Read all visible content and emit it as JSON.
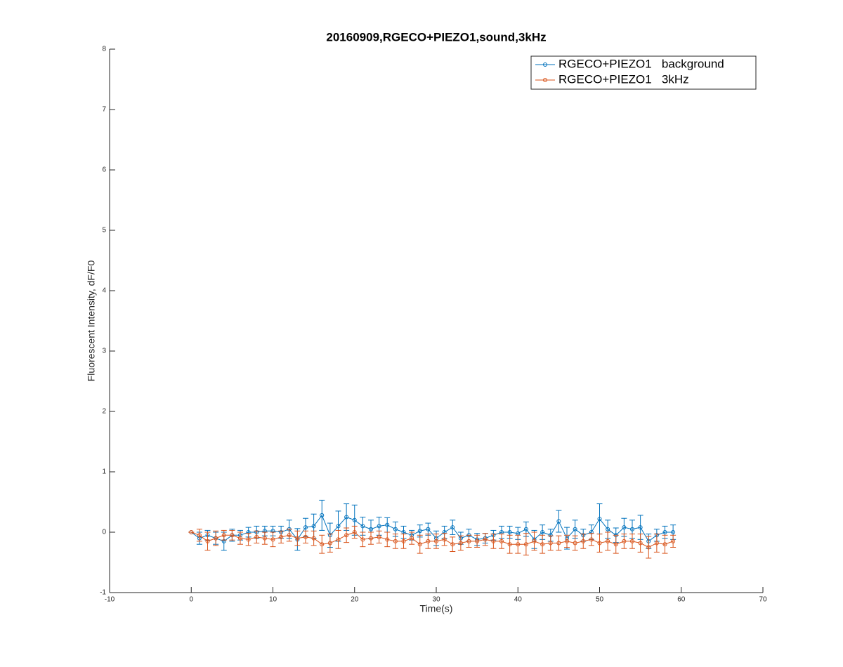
{
  "chart_data": {
    "type": "errorbar-line",
    "title": "20160909,RGECO+PIEZO1,sound,3kHz",
    "xlabel": "Time(s)",
    "ylabel": "Fluorescent Intensity, dF/F0",
    "xlim": [
      -10,
      70
    ],
    "xticks": [
      -10,
      0,
      10,
      20,
      30,
      40,
      50,
      60,
      70
    ],
    "ylim": [
      -1,
      8
    ],
    "yticks": [
      -1,
      0,
      1,
      2,
      3,
      4,
      5,
      6,
      7,
      8
    ],
    "legend": "upper right",
    "x": [
      0,
      1,
      2,
      3,
      4,
      5,
      6,
      7,
      8,
      9,
      10,
      11,
      12,
      13,
      14,
      15,
      16,
      17,
      18,
      19,
      20,
      21,
      22,
      23,
      24,
      25,
      26,
      27,
      28,
      29,
      30,
      31,
      32,
      33,
      34,
      35,
      36,
      37,
      38,
      39,
      40,
      41,
      42,
      43,
      44,
      45,
      46,
      47,
      48,
      49,
      50,
      51,
      52,
      53,
      54,
      55,
      56,
      57,
      58,
      59
    ],
    "series": [
      {
        "name": "RGECO+PIEZO1   background",
        "color": "#0072bd",
        "values": [
          0,
          -0.1,
          -0.05,
          -0.1,
          -0.15,
          -0.05,
          -0.05,
          0,
          0,
          0.02,
          0.02,
          0,
          0.05,
          -0.12,
          0.08,
          0.1,
          0.28,
          -0.05,
          0.1,
          0.25,
          0.2,
          0.1,
          0.05,
          0.1,
          0.12,
          0.05,
          0,
          -0.05,
          0.02,
          0.05,
          -0.1,
          0,
          0.08,
          -0.1,
          -0.05,
          -0.12,
          -0.1,
          -0.05,
          0,
          0,
          -0.02,
          0.05,
          -0.12,
          0,
          -0.05,
          0.18,
          -0.1,
          0.05,
          -0.05,
          0,
          0.22,
          0.05,
          -0.05,
          0.08,
          0.05,
          0.08,
          -0.15,
          -0.05,
          0,
          0
        ],
        "errors": [
          0,
          0.1,
          0.08,
          0.1,
          0.15,
          0.1,
          0.08,
          0.08,
          0.1,
          0.08,
          0.08,
          0.1,
          0.15,
          0.18,
          0.15,
          0.2,
          0.25,
          0.2,
          0.25,
          0.22,
          0.25,
          0.15,
          0.15,
          0.15,
          0.12,
          0.12,
          0.1,
          0.08,
          0.1,
          0.1,
          0.12,
          0.1,
          0.12,
          0.1,
          0.1,
          0.1,
          0.08,
          0.08,
          0.1,
          0.1,
          0.1,
          0.12,
          0.15,
          0.12,
          0.1,
          0.18,
          0.18,
          0.15,
          0.1,
          0.12,
          0.25,
          0.15,
          0.12,
          0.15,
          0.15,
          0.2,
          0.12,
          0.1,
          0.1,
          0.12
        ]
      },
      {
        "name": "RGECO+PIEZO1   3kHz",
        "color": "#d95319",
        "values": [
          0,
          -0.05,
          -0.15,
          -0.1,
          -0.05,
          -0.05,
          -0.1,
          -0.12,
          -0.08,
          -0.1,
          -0.12,
          -0.08,
          -0.05,
          -0.1,
          -0.08,
          -0.1,
          -0.2,
          -0.18,
          -0.12,
          -0.05,
          0,
          -0.12,
          -0.1,
          -0.08,
          -0.12,
          -0.15,
          -0.15,
          -0.1,
          -0.2,
          -0.15,
          -0.15,
          -0.12,
          -0.2,
          -0.18,
          -0.15,
          -0.15,
          -0.12,
          -0.15,
          -0.15,
          -0.2,
          -0.2,
          -0.2,
          -0.15,
          -0.2,
          -0.18,
          -0.18,
          -0.15,
          -0.18,
          -0.15,
          -0.12,
          -0.18,
          -0.15,
          -0.2,
          -0.15,
          -0.15,
          -0.18,
          -0.25,
          -0.18,
          -0.2,
          -0.15
        ],
        "errors": [
          0,
          0.1,
          0.15,
          0.12,
          0.08,
          0.08,
          0.1,
          0.1,
          0.1,
          0.1,
          0.12,
          0.1,
          0.1,
          0.12,
          0.1,
          0.12,
          0.15,
          0.15,
          0.15,
          0.12,
          0.1,
          0.12,
          0.1,
          0.1,
          0.12,
          0.12,
          0.12,
          0.1,
          0.15,
          0.12,
          0.12,
          0.1,
          0.12,
          0.12,
          0.1,
          0.1,
          0.1,
          0.12,
          0.12,
          0.15,
          0.15,
          0.18,
          0.15,
          0.15,
          0.12,
          0.12,
          0.1,
          0.12,
          0.12,
          0.1,
          0.15,
          0.15,
          0.15,
          0.12,
          0.12,
          0.15,
          0.18,
          0.15,
          0.15,
          0.1
        ]
      }
    ]
  }
}
